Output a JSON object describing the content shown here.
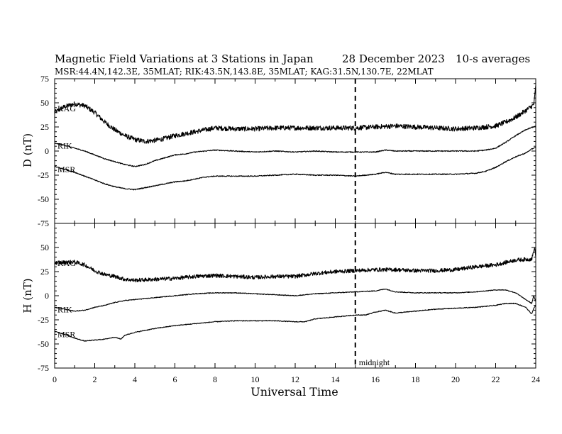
{
  "header": {
    "title": "Magnetic Field Variations at 3 Stations in Japan",
    "date": "28 December 2023",
    "averaging": "10-s averages",
    "stations_line": "MSR:44.4N,142.3E, 35MLAT;  RIK:43.5N,143.8E, 35MLAT;  KAG:31.5N,130.7E, 22MLAT"
  },
  "chart_data": [
    {
      "type": "line",
      "ylabel": "D (nT)",
      "ylim": [
        -75,
        75
      ],
      "yticks": [
        "75",
        "50",
        "25",
        "0",
        "-25",
        "-50",
        "-75"
      ],
      "xlim": [
        0,
        24
      ],
      "marker": {
        "x": 15,
        "label": ""
      },
      "series": [
        {
          "name": "KAG",
          "noise": 2.5,
          "points": [
            [
              0,
              40
            ],
            [
              0.5,
              46
            ],
            [
              1,
              49
            ],
            [
              1.5,
              47
            ],
            [
              2,
              40
            ],
            [
              2.5,
              30
            ],
            [
              3,
              22
            ],
            [
              3.5,
              16
            ],
            [
              4,
              12
            ],
            [
              4.5,
              10
            ],
            [
              5,
              11
            ],
            [
              5.5,
              13
            ],
            [
              6,
              16
            ],
            [
              6.5,
              18
            ],
            [
              7,
              20
            ],
            [
              7.5,
              22
            ],
            [
              8,
              24
            ],
            [
              9,
              23
            ],
            [
              10,
              23
            ],
            [
              11,
              24
            ],
            [
              12,
              24
            ],
            [
              13,
              24
            ],
            [
              14,
              24
            ],
            [
              15,
              24
            ],
            [
              16,
              25
            ],
            [
              17,
              26
            ],
            [
              18,
              25
            ],
            [
              19,
              24
            ],
            [
              20,
              23
            ],
            [
              21,
              24
            ],
            [
              22,
              26
            ],
            [
              22.5,
              30
            ],
            [
              23,
              35
            ],
            [
              23.5,
              42
            ],
            [
              23.9,
              48
            ],
            [
              24,
              68
            ]
          ]
        },
        {
          "name": "RIK",
          "noise": 0.5,
          "points": [
            [
              0,
              8
            ],
            [
              0.5,
              6
            ],
            [
              1,
              3
            ],
            [
              1.5,
              0
            ],
            [
              2,
              -4
            ],
            [
              2.5,
              -8
            ],
            [
              3,
              -11
            ],
            [
              3.5,
              -14
            ],
            [
              4,
              -16
            ],
            [
              4.5,
              -14
            ],
            [
              5,
              -10
            ],
            [
              5.5,
              -7
            ],
            [
              6,
              -4
            ],
            [
              6.5,
              -3
            ],
            [
              7,
              -1
            ],
            [
              7.5,
              0
            ],
            [
              8,
              1
            ],
            [
              9,
              0
            ],
            [
              10,
              -1
            ],
            [
              11,
              0
            ],
            [
              12,
              -1
            ],
            [
              13,
              0
            ],
            [
              14,
              -1
            ],
            [
              15,
              -1
            ],
            [
              16,
              -1
            ],
            [
              16.5,
              1
            ],
            [
              17,
              0
            ],
            [
              18,
              0
            ],
            [
              19,
              0
            ],
            [
              20,
              0
            ],
            [
              21,
              0
            ],
            [
              21.5,
              1
            ],
            [
              22,
              3
            ],
            [
              22.5,
              9
            ],
            [
              23,
              16
            ],
            [
              23.5,
              22
            ],
            [
              24,
              26
            ]
          ]
        },
        {
          "name": "MSR",
          "noise": 0.5,
          "points": [
            [
              0,
              -16
            ],
            [
              0.5,
              -19
            ],
            [
              1,
              -22
            ],
            [
              1.5,
              -26
            ],
            [
              2,
              -30
            ],
            [
              2.5,
              -34
            ],
            [
              3,
              -37
            ],
            [
              3.5,
              -39
            ],
            [
              4,
              -40
            ],
            [
              4.5,
              -38
            ],
            [
              5,
              -36
            ],
            [
              5.5,
              -34
            ],
            [
              6,
              -32
            ],
            [
              6.5,
              -31
            ],
            [
              7,
              -29
            ],
            [
              7.5,
              -27
            ],
            [
              8,
              -26
            ],
            [
              9,
              -26
            ],
            [
              10,
              -26
            ],
            [
              11,
              -25
            ],
            [
              12,
              -24
            ],
            [
              13,
              -25
            ],
            [
              14,
              -25
            ],
            [
              15,
              -26
            ],
            [
              15.5,
              -25
            ],
            [
              16,
              -24
            ],
            [
              16.5,
              -22
            ],
            [
              17,
              -24
            ],
            [
              18,
              -24
            ],
            [
              19,
              -24
            ],
            [
              20,
              -24
            ],
            [
              21,
              -23
            ],
            [
              21.5,
              -21
            ],
            [
              22,
              -17
            ],
            [
              22.5,
              -11
            ],
            [
              23,
              -6
            ],
            [
              23.5,
              -2
            ],
            [
              23.8,
              2
            ],
            [
              24,
              4
            ]
          ]
        }
      ]
    },
    {
      "type": "line",
      "xlabel": "Universal Time",
      "ylabel": "H (nT)",
      "ylim": [
        -75,
        75
      ],
      "yticks": [
        "",
        "50",
        "25",
        "0",
        "-25",
        "-50",
        "-75"
      ],
      "xlim": [
        0,
        24
      ],
      "xticks": [
        "0",
        "2",
        "4",
        "6",
        "8",
        "10",
        "12",
        "14",
        "16",
        "18",
        "20",
        "22",
        "24"
      ],
      "marker": {
        "x": 15,
        "label": "midnight"
      },
      "series": [
        {
          "name": "KAG",
          "noise": 2.0,
          "points": [
            [
              0,
              34
            ],
            [
              1,
              35
            ],
            [
              1.5,
              32
            ],
            [
              2,
              26
            ],
            [
              2.5,
              22
            ],
            [
              3,
              20
            ],
            [
              3.5,
              17
            ],
            [
              4,
              16
            ],
            [
              5,
              17
            ],
            [
              6,
              18
            ],
            [
              7,
              20
            ],
            [
              8,
              21
            ],
            [
              9,
              20
            ],
            [
              10,
              19
            ],
            [
              11,
              20
            ],
            [
              12,
              20
            ],
            [
              13,
              23
            ],
            [
              14,
              25
            ],
            [
              15,
              26
            ],
            [
              16,
              27
            ],
            [
              17,
              27
            ],
            [
              18,
              26
            ],
            [
              19,
              26
            ],
            [
              20,
              27
            ],
            [
              21,
              30
            ],
            [
              22,
              32
            ],
            [
              23,
              37
            ],
            [
              23.8,
              38
            ],
            [
              23.95,
              50
            ],
            [
              24,
              40
            ]
          ]
        },
        {
          "name": "RIK",
          "noise": 0.4,
          "points": [
            [
              0,
              -12
            ],
            [
              0.5,
              -14
            ],
            [
              1,
              -16
            ],
            [
              1.5,
              -15
            ],
            [
              2,
              -12
            ],
            [
              2.5,
              -10
            ],
            [
              3,
              -7
            ],
            [
              3.5,
              -5
            ],
            [
              4,
              -4
            ],
            [
              5,
              -2
            ],
            [
              6,
              0
            ],
            [
              7,
              2
            ],
            [
              8,
              3
            ],
            [
              9,
              3
            ],
            [
              10,
              2
            ],
            [
              11,
              1
            ],
            [
              12,
              0
            ],
            [
              12.5,
              1
            ],
            [
              13,
              2
            ],
            [
              14,
              3
            ],
            [
              15,
              4
            ],
            [
              16,
              5
            ],
            [
              16.5,
              7
            ],
            [
              17,
              4
            ],
            [
              18,
              3
            ],
            [
              19,
              3
            ],
            [
              20,
              3
            ],
            [
              21,
              4
            ],
            [
              22,
              6
            ],
            [
              22.5,
              6
            ],
            [
              23,
              3
            ],
            [
              23.5,
              -4
            ],
            [
              23.8,
              -8
            ],
            [
              23.9,
              0
            ],
            [
              24,
              -6
            ]
          ]
        },
        {
          "name": "MSR",
          "noise": 0.4,
          "points": [
            [
              0,
              -37
            ],
            [
              0.5,
              -40
            ],
            [
              1,
              -44
            ],
            [
              1.5,
              -47
            ],
            [
              2,
              -46
            ],
            [
              2.5,
              -45
            ],
            [
              3,
              -43
            ],
            [
              3.3,
              -45
            ],
            [
              3.5,
              -41
            ],
            [
              4,
              -38
            ],
            [
              5,
              -34
            ],
            [
              6,
              -31
            ],
            [
              7,
              -29
            ],
            [
              8,
              -27
            ],
            [
              9,
              -26
            ],
            [
              10,
              -26
            ],
            [
              11,
              -26
            ],
            [
              12,
              -27
            ],
            [
              12.5,
              -27
            ],
            [
              13,
              -24
            ],
            [
              14,
              -22
            ],
            [
              15,
              -20
            ],
            [
              15.5,
              -20
            ],
            [
              16,
              -17
            ],
            [
              16.5,
              -15
            ],
            [
              17,
              -18
            ],
            [
              18,
              -16
            ],
            [
              19,
              -14
            ],
            [
              20,
              -13
            ],
            [
              21,
              -12
            ],
            [
              22,
              -10
            ],
            [
              22.5,
              -8
            ],
            [
              23,
              -8
            ],
            [
              23.5,
              -12
            ],
            [
              23.8,
              -19
            ],
            [
              23.9,
              -13
            ],
            [
              24,
              -10
            ]
          ]
        }
      ]
    }
  ]
}
